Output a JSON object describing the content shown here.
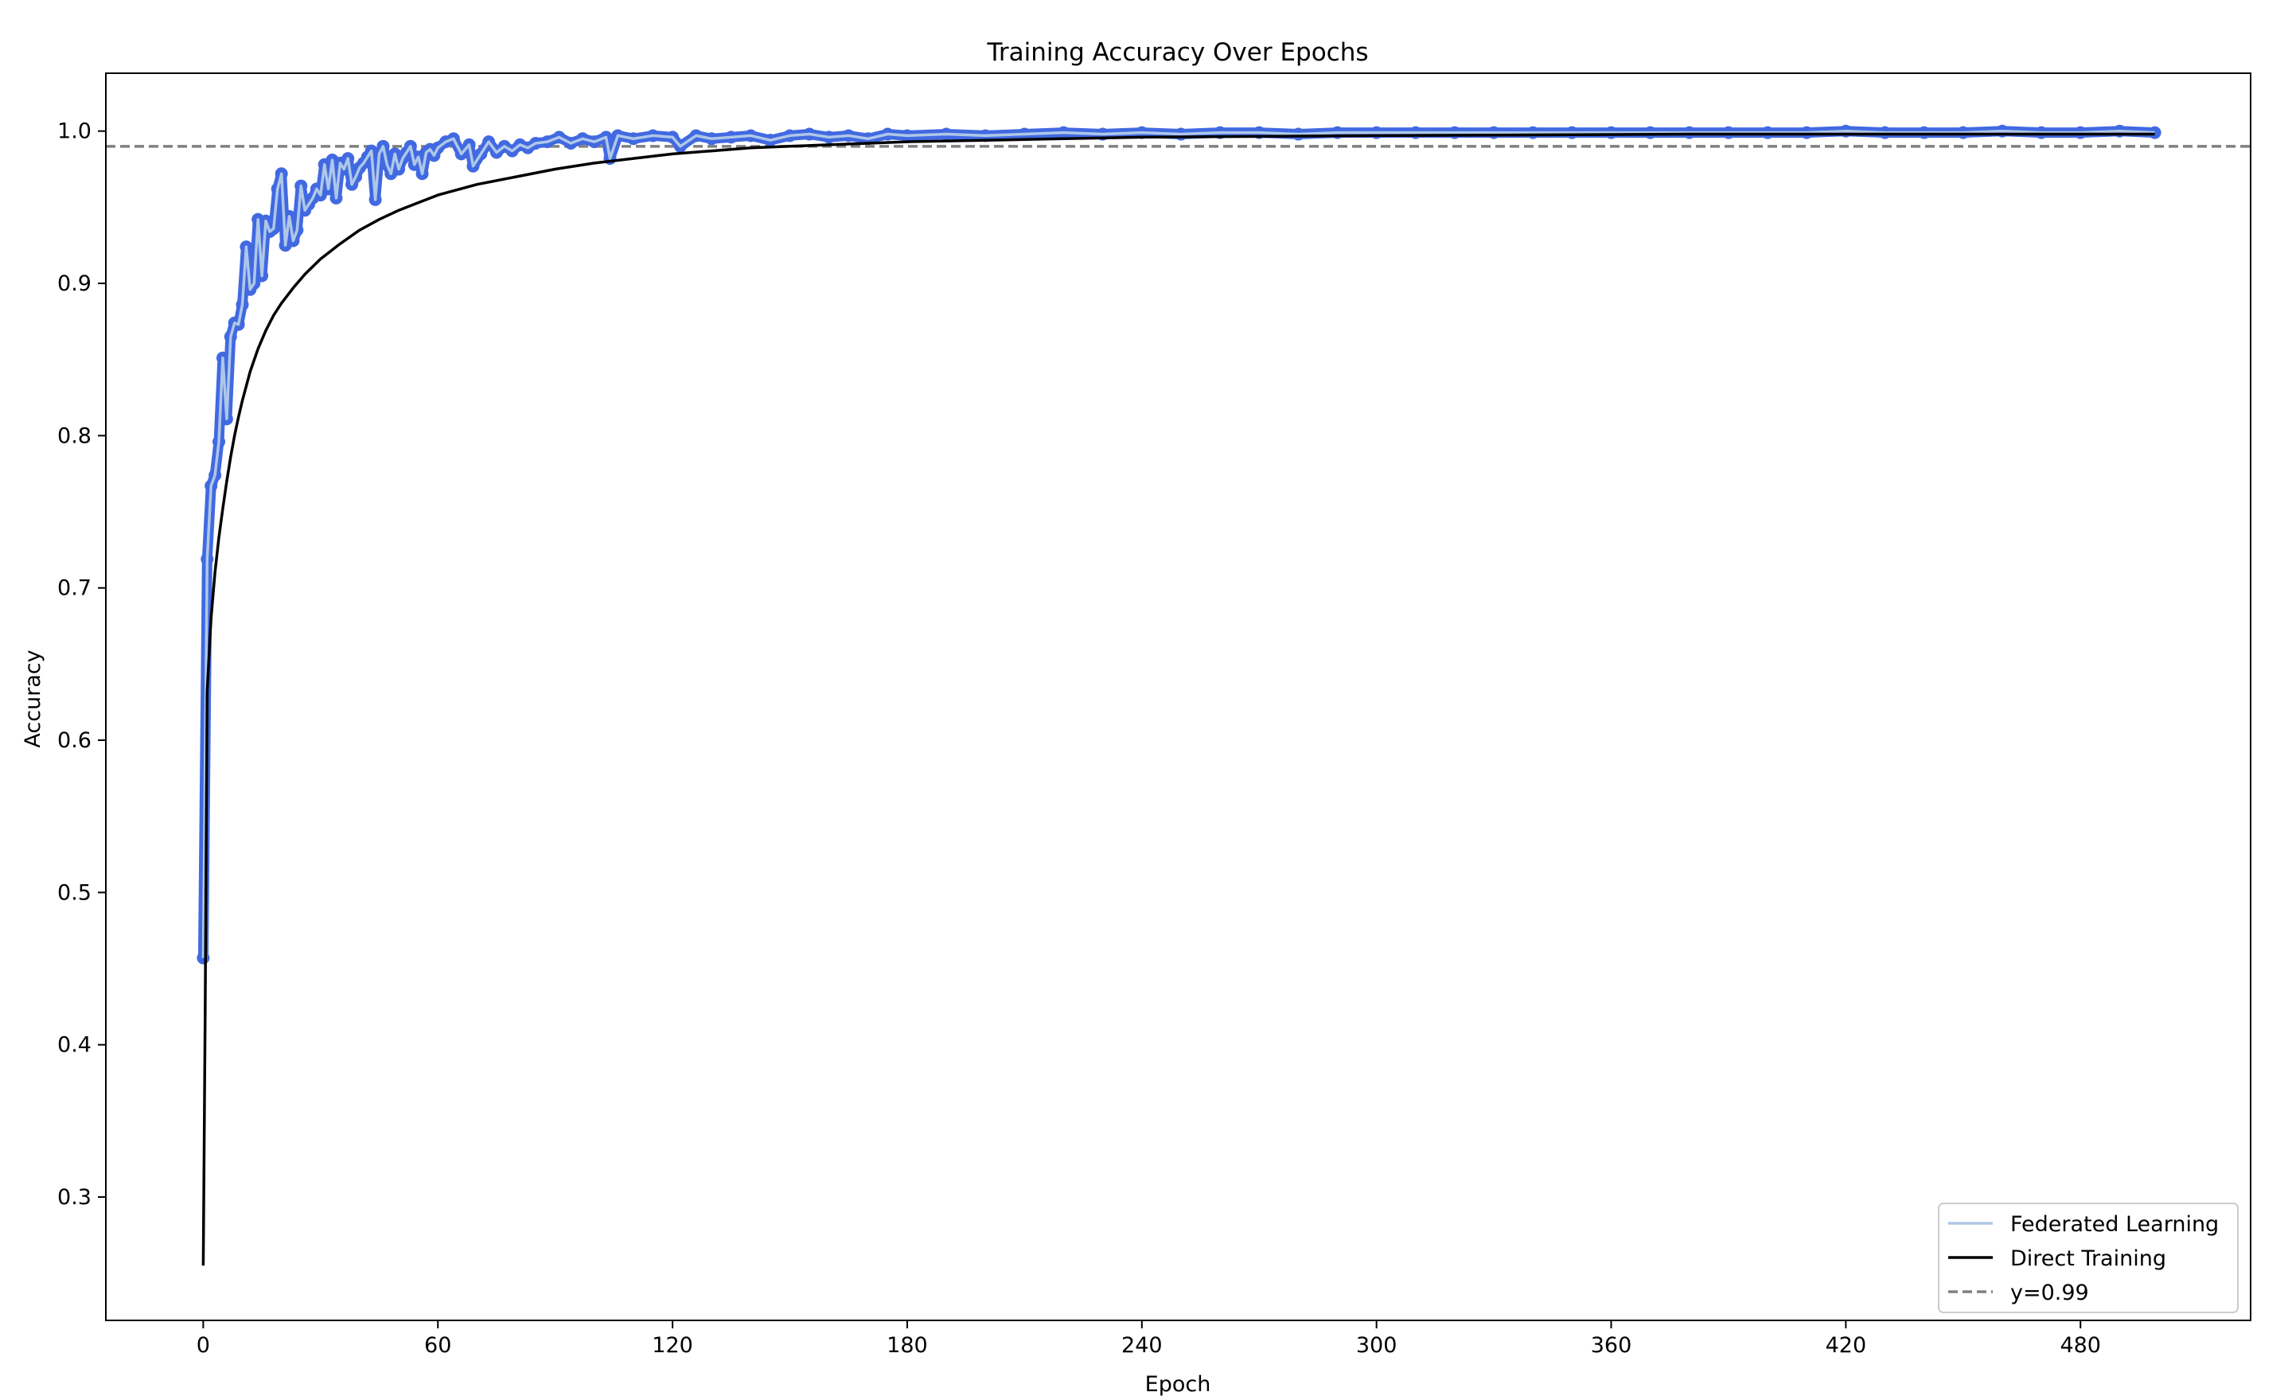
{
  "chart_data": {
    "type": "line",
    "title": "Training Accuracy Over Epochs",
    "xlabel": "Epoch",
    "ylabel": "Accuracy",
    "xlim": [
      -24.9,
      523.5
    ],
    "ylim": [
      0.219,
      1.038
    ],
    "xticks": [
      0,
      60,
      120,
      180,
      240,
      300,
      360,
      420,
      480
    ],
    "yticks": [
      0.3,
      0.4,
      0.5,
      0.6,
      0.7,
      0.8,
      0.9,
      1.0
    ],
    "ytick_labels": [
      "0.3",
      "0.4",
      "0.5",
      "0.6",
      "0.7",
      "0.8",
      "0.9",
      "1.0"
    ],
    "grid": false,
    "legend_position": "bottom-right",
    "threshold": {
      "name": "y=0.99",
      "y": 0.99,
      "color": "#808080",
      "style": "dashed"
    },
    "series": [
      {
        "name": "Federated Learning",
        "line_color": "#aec7e8",
        "marker_color": "#4169e1",
        "points": [
          [
            0,
            0.457
          ],
          [
            1,
            0.719
          ],
          [
            2,
            0.767
          ],
          [
            3,
            0.774
          ],
          [
            4,
            0.796
          ],
          [
            5,
            0.851
          ],
          [
            6,
            0.811
          ],
          [
            7,
            0.865
          ],
          [
            8,
            0.874
          ],
          [
            9,
            0.873
          ],
          [
            10,
            0.886
          ],
          [
            11,
            0.924
          ],
          [
            12,
            0.896
          ],
          [
            13,
            0.9
          ],
          [
            14,
            0.942
          ],
          [
            15,
            0.905
          ],
          [
            16,
            0.941
          ],
          [
            17,
            0.934
          ],
          [
            18,
            0.936
          ],
          [
            19,
            0.962
          ],
          [
            20,
            0.972
          ],
          [
            21,
            0.925
          ],
          [
            22,
            0.944
          ],
          [
            23,
            0.928
          ],
          [
            24,
            0.935
          ],
          [
            25,
            0.964
          ],
          [
            26,
            0.948
          ],
          [
            27,
            0.952
          ],
          [
            28,
            0.956
          ],
          [
            29,
            0.962
          ],
          [
            30,
            0.958
          ],
          [
            31,
            0.978
          ],
          [
            32,
            0.962
          ],
          [
            33,
            0.981
          ],
          [
            34,
            0.956
          ],
          [
            35,
            0.979
          ],
          [
            36,
            0.975
          ],
          [
            37,
            0.982
          ],
          [
            38,
            0.965
          ],
          [
            39,
            0.97
          ],
          [
            40,
            0.976
          ],
          [
            41,
            0.979
          ],
          [
            42,
            0.983
          ],
          [
            43,
            0.987
          ],
          [
            44,
            0.955
          ],
          [
            45,
            0.985
          ],
          [
            46,
            0.99
          ],
          [
            47,
            0.978
          ],
          [
            48,
            0.972
          ],
          [
            49,
            0.985
          ],
          [
            50,
            0.975
          ],
          [
            51,
            0.982
          ],
          [
            52,
            0.986
          ],
          [
            53,
            0.99
          ],
          [
            54,
            0.978
          ],
          [
            55,
            0.983
          ],
          [
            56,
            0.972
          ],
          [
            57,
            0.986
          ],
          [
            58,
            0.988
          ],
          [
            59,
            0.984
          ],
          [
            60,
            0.989
          ],
          [
            62,
            0.993
          ],
          [
            64,
            0.995
          ],
          [
            66,
            0.985
          ],
          [
            68,
            0.991
          ],
          [
            69,
            0.977
          ],
          [
            71,
            0.985
          ],
          [
            73,
            0.993
          ],
          [
            75,
            0.986
          ],
          [
            77,
            0.99
          ],
          [
            79,
            0.987
          ],
          [
            81,
            0.991
          ],
          [
            83,
            0.989
          ],
          [
            85,
            0.992
          ],
          [
            88,
            0.993
          ],
          [
            91,
            0.996
          ],
          [
            94,
            0.992
          ],
          [
            97,
            0.995
          ],
          [
            100,
            0.993
          ],
          [
            103,
            0.996
          ],
          [
            104,
            0.982
          ],
          [
            106,
            0.997
          ],
          [
            110,
            0.995
          ],
          [
            115,
            0.997
          ],
          [
            120,
            0.996
          ],
          [
            122,
            0.99
          ],
          [
            126,
            0.997
          ],
          [
            130,
            0.995
          ],
          [
            135,
            0.996
          ],
          [
            140,
            0.997
          ],
          [
            145,
            0.994
          ],
          [
            150,
            0.997
          ],
          [
            155,
            0.998
          ],
          [
            160,
            0.996
          ],
          [
            165,
            0.997
          ],
          [
            170,
            0.995
          ],
          [
            175,
            0.998
          ],
          [
            180,
            0.997
          ],
          [
            190,
            0.998
          ],
          [
            200,
            0.997
          ],
          [
            210,
            0.998
          ],
          [
            220,
            0.999
          ],
          [
            230,
            0.998
          ],
          [
            240,
            0.999
          ],
          [
            250,
            0.998
          ],
          [
            260,
            0.999
          ],
          [
            270,
            0.999
          ],
          [
            280,
            0.998
          ],
          [
            290,
            0.999
          ],
          [
            300,
            0.999
          ],
          [
            310,
            0.999
          ],
          [
            320,
            0.999
          ],
          [
            330,
            0.999
          ],
          [
            340,
            0.999
          ],
          [
            350,
            0.999
          ],
          [
            360,
            0.999
          ],
          [
            370,
            0.999
          ],
          [
            380,
            0.999
          ],
          [
            390,
            0.999
          ],
          [
            400,
            0.999
          ],
          [
            410,
            0.999
          ],
          [
            420,
            1.0
          ],
          [
            430,
            0.999
          ],
          [
            440,
            0.999
          ],
          [
            450,
            0.999
          ],
          [
            460,
            1.0
          ],
          [
            470,
            0.999
          ],
          [
            480,
            0.999
          ],
          [
            490,
            1.0
          ],
          [
            499,
            0.999
          ]
        ]
      },
      {
        "name": "Direct Training",
        "line_color": "#000000",
        "points": [
          [
            0,
            0.255
          ],
          [
            0.5,
            0.42
          ],
          [
            1,
            0.632
          ],
          [
            2,
            0.68
          ],
          [
            3,
            0.71
          ],
          [
            4,
            0.733
          ],
          [
            5,
            0.752
          ],
          [
            6,
            0.77
          ],
          [
            7,
            0.786
          ],
          [
            8,
            0.8
          ],
          [
            9,
            0.812
          ],
          [
            10,
            0.823
          ],
          [
            12,
            0.842
          ],
          [
            14,
            0.857
          ],
          [
            16,
            0.869
          ],
          [
            18,
            0.879
          ],
          [
            20,
            0.887
          ],
          [
            23,
            0.897
          ],
          [
            26,
            0.906
          ],
          [
            30,
            0.916
          ],
          [
            35,
            0.926
          ],
          [
            40,
            0.935
          ],
          [
            45,
            0.942
          ],
          [
            50,
            0.948
          ],
          [
            55,
            0.953
          ],
          [
            60,
            0.958
          ],
          [
            70,
            0.965
          ],
          [
            80,
            0.97
          ],
          [
            90,
            0.975
          ],
          [
            100,
            0.979
          ],
          [
            110,
            0.982
          ],
          [
            120,
            0.985
          ],
          [
            130,
            0.987
          ],
          [
            140,
            0.989
          ],
          [
            150,
            0.99
          ],
          [
            160,
            0.991
          ],
          [
            170,
            0.992
          ],
          [
            180,
            0.993
          ],
          [
            200,
            0.994
          ],
          [
            220,
            0.995
          ],
          [
            240,
            0.996
          ],
          [
            270,
            0.9965
          ],
          [
            300,
            0.997
          ],
          [
            340,
            0.9975
          ],
          [
            380,
            0.998
          ],
          [
            420,
            0.998
          ],
          [
            460,
            0.998
          ],
          [
            499,
            0.998
          ]
        ]
      }
    ]
  }
}
